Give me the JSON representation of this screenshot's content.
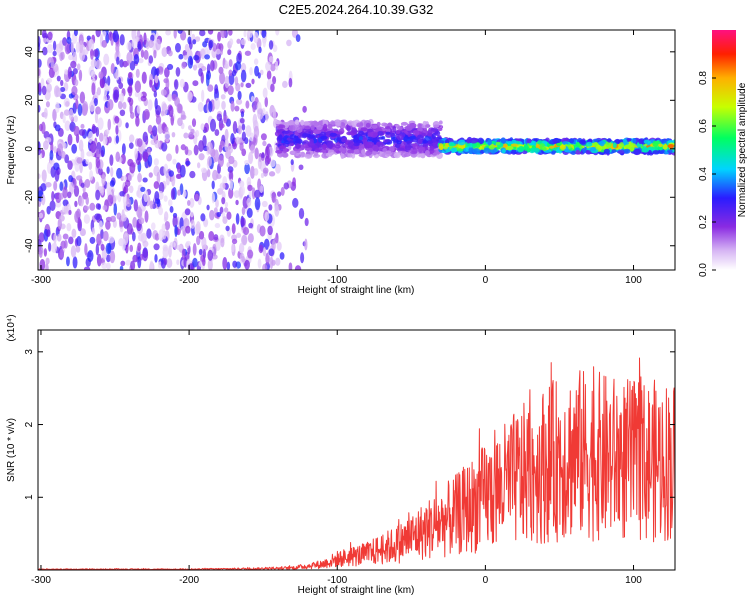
{
  "title": "C2E5.2024.264.10.39.G32",
  "colors": {
    "spectrogram_line": "#7a1fe6",
    "snr_line": "#f03a35",
    "axis": "#000000"
  },
  "chart_data": [
    {
      "type": "heatmap",
      "xlabel": "Height of straight line (km)",
      "ylabel": "Frequency (Hz)",
      "xlim": [
        -302,
        128
      ],
      "ylim": [
        -50,
        49
      ],
      "xticks": [
        -300,
        -200,
        -100,
        0,
        100
      ],
      "yticks": [
        -40,
        -20,
        0,
        20,
        40
      ],
      "colorbar": {
        "label": "Normalized spectral amplitude",
        "range": [
          0,
          1
        ],
        "ticks": [
          "0.0",
          "0.2",
          "0.4",
          "0.6",
          "0.8"
        ]
      },
      "features": [
        {
          "name": "noise",
          "x_range": [
            -302,
            -120
          ],
          "freq_range": [
            -50,
            49
          ],
          "amplitude": 0.1
        },
        {
          "name": "signal",
          "x_range": [
            -140,
            -30
          ],
          "freq_center": 4,
          "freq_halfwidth": 7,
          "amplitude": 0.35
        },
        {
          "name": "signal",
          "x_range": [
            -30,
            128
          ],
          "freq_center": 1,
          "freq_halfwidth": 2.5,
          "amplitude": 0.9
        }
      ]
    },
    {
      "type": "line",
      "xlabel": "Height of straight line (km)",
      "ylabel": "SNR (10 * v/v)",
      "y_multiplier": "(x10⁴)",
      "xlim": [
        -302,
        128
      ],
      "ylim": [
        0,
        3.3
      ],
      "xticks": [
        -300,
        -200,
        -100,
        0,
        100
      ],
      "yticks": [
        1,
        2,
        3
      ],
      "series": [
        {
          "x": [
            -302,
            -250,
            -200,
            -150,
            -130,
            -110,
            -100,
            -80,
            -60,
            -40,
            -20,
            0,
            20,
            40,
            60,
            80,
            100,
            128
          ],
          "values": [
            0.01,
            0.01,
            0.01,
            0.02,
            0.03,
            0.08,
            0.15,
            0.22,
            0.35,
            0.55,
            0.75,
            1.0,
            1.25,
            1.45,
            1.6,
            1.55,
            1.5,
            1.5
          ]
        }
      ]
    }
  ]
}
